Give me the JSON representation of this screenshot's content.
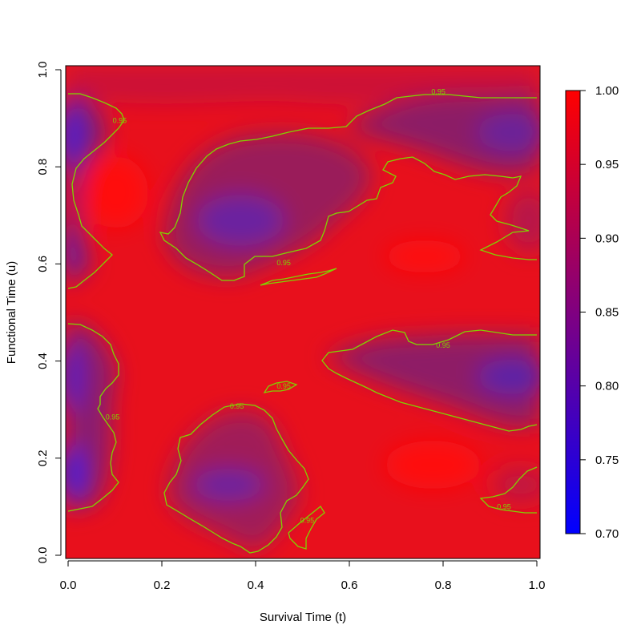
{
  "chart_data": {
    "type": "heatmap",
    "title": "",
    "xlabel": "Survival Time (t)",
    "ylabel": "Functional Time (u)",
    "xlim": [
      0,
      1
    ],
    "ylim": [
      0,
      1
    ],
    "x_ticks": [
      "0.0",
      "0.2",
      "0.4",
      "0.6",
      "0.8",
      "1.0"
    ],
    "y_ticks": [
      "0.0",
      "0.2",
      "0.4",
      "0.6",
      "0.8",
      "1.0"
    ],
    "colorbar": {
      "range": [
        0.7,
        1.0
      ],
      "ticks": [
        "0.70",
        "0.75",
        "0.80",
        "0.85",
        "0.90",
        "0.95",
        "1.00"
      ],
      "low_color": "#0000ff",
      "high_color": "#ff0000"
    },
    "contour_level": 0.95,
    "contour_color": "#7fd400",
    "contour_labels": [
      {
        "text": "0.95",
        "t": 0.79,
        "u": 0.955
      },
      {
        "text": "0.95",
        "t": 0.11,
        "u": 0.895
      },
      {
        "text": "0.95",
        "t": 0.46,
        "u": 0.602
      },
      {
        "text": "0.95",
        "t": 0.8,
        "u": 0.432
      },
      {
        "text": "0.95",
        "t": 0.46,
        "u": 0.348
      },
      {
        "text": "0.95",
        "t": 0.36,
        "u": 0.307
      },
      {
        "text": "0.95",
        "t": 0.095,
        "u": 0.285
      },
      {
        "text": "0.95",
        "t": 0.51,
        "u": 0.072
      },
      {
        "text": "0.95",
        "t": 0.93,
        "u": 0.1
      }
    ],
    "low_regions": [
      {
        "t": 0.0,
        "u": 0.85,
        "value": 0.74
      },
      {
        "t": 0.0,
        "u": 0.63,
        "value": 0.82
      },
      {
        "t": 0.0,
        "u": 0.36,
        "value": 0.76
      },
      {
        "t": 0.0,
        "u": 0.16,
        "value": 0.75
      },
      {
        "t": 0.37,
        "u": 0.69,
        "value": 0.86
      },
      {
        "t": 0.3,
        "u": 0.8,
        "value": 0.9
      },
      {
        "t": 0.37,
        "u": 0.15,
        "value": 0.86
      },
      {
        "t": 0.7,
        "u": 0.86,
        "value": 0.89
      },
      {
        "t": 0.97,
        "u": 0.86,
        "value": 0.85
      },
      {
        "t": 0.97,
        "u": 0.36,
        "value": 0.84
      },
      {
        "t": 0.75,
        "u": 0.37,
        "value": 0.9
      },
      {
        "t": 0.95,
        "u": 0.14,
        "value": 0.92
      }
    ]
  }
}
